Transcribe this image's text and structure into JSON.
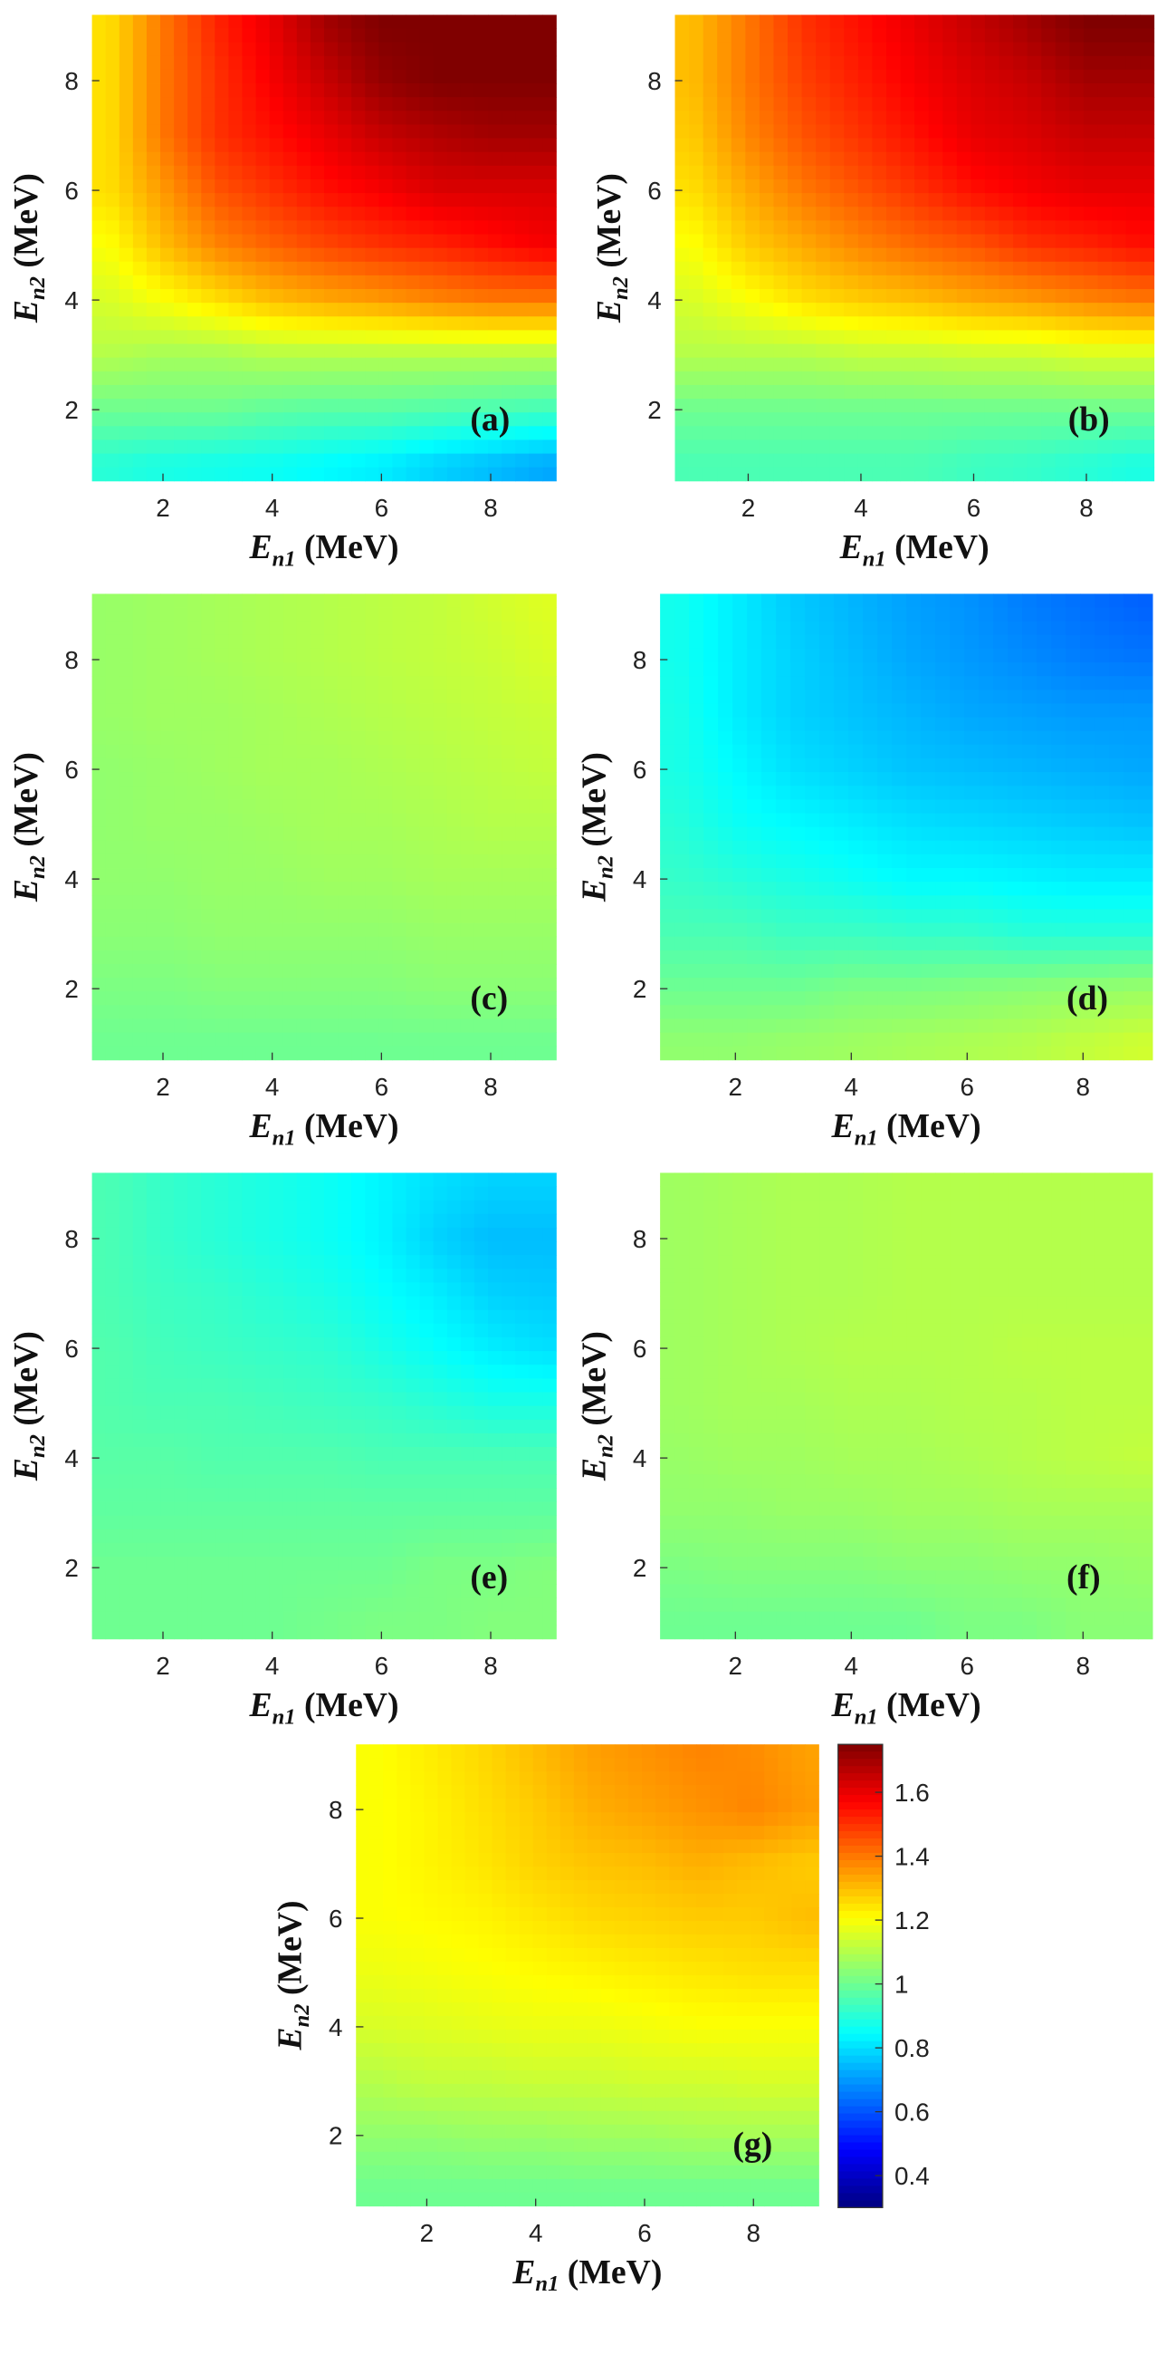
{
  "chart_data": [
    {
      "type": "heatmap",
      "panel": "(a)",
      "xlabel": {
        "main": "E",
        "sub": "n1",
        "unit": " (MeV)"
      },
      "ylabel": {
        "main": "E",
        "sub": "n2",
        "unit": " (MeV)"
      },
      "xticks": [
        "2",
        "4",
        "6",
        "8"
      ],
      "yticks": [
        "2",
        "4",
        "6",
        "8"
      ],
      "xlim": [
        0.7,
        9.2
      ],
      "ylim": [
        0.7,
        9.2
      ],
      "x": [
        1,
        2,
        3,
        4,
        5,
        6,
        7,
        8,
        9
      ],
      "y": [
        1,
        2,
        3,
        4,
        5,
        6,
        7,
        8,
        9
      ],
      "z": [
        [
          0.9,
          0.88,
          0.87,
          0.86,
          0.84,
          0.82,
          0.78,
          0.75,
          0.72
        ],
        [
          1.0,
          1.0,
          1.0,
          0.98,
          0.97,
          0.97,
          0.96,
          0.95,
          0.94
        ],
        [
          1.1,
          1.08,
          1.08,
          1.1,
          1.1,
          1.1,
          1.1,
          1.1,
          1.1
        ],
        [
          1.15,
          1.2,
          1.25,
          1.3,
          1.33,
          1.35,
          1.38,
          1.4,
          1.4
        ],
        [
          1.2,
          1.3,
          1.38,
          1.43,
          1.47,
          1.5,
          1.52,
          1.55,
          1.58
        ],
        [
          1.25,
          1.35,
          1.45,
          1.5,
          1.55,
          1.58,
          1.62,
          1.62,
          1.62
        ],
        [
          1.25,
          1.4,
          1.5,
          1.55,
          1.6,
          1.65,
          1.68,
          1.7,
          1.7
        ],
        [
          1.25,
          1.4,
          1.5,
          1.58,
          1.65,
          1.72,
          1.75,
          1.75,
          1.75
        ],
        [
          1.25,
          1.4,
          1.52,
          1.6,
          1.7,
          1.75,
          1.75,
          1.75,
          1.75
        ]
      ]
    },
    {
      "type": "heatmap",
      "panel": "(b)",
      "xlabel": {
        "main": "E",
        "sub": "n1",
        "unit": " (MeV)"
      },
      "ylabel": {
        "main": "E",
        "sub": "n2",
        "unit": " (MeV)"
      },
      "xticks": [
        "2",
        "4",
        "6",
        "8"
      ],
      "yticks": [
        "2",
        "4",
        "6",
        "8"
      ],
      "xlim": [
        0.7,
        9.2
      ],
      "ylim": [
        0.7,
        9.2
      ],
      "x": [
        1,
        2,
        3,
        4,
        5,
        6,
        7,
        8,
        9
      ],
      "y": [
        1,
        2,
        3,
        4,
        5,
        6,
        7,
        8,
        9
      ],
      "z": [
        [
          0.95,
          0.95,
          0.95,
          0.95,
          0.95,
          0.93,
          0.92,
          0.9,
          0.88
        ],
        [
          1.0,
          1.0,
          1.0,
          1.0,
          1.0,
          1.0,
          1.0,
          1.0,
          1.0
        ],
        [
          1.1,
          1.1,
          1.1,
          1.12,
          1.12,
          1.13,
          1.13,
          1.15,
          1.15
        ],
        [
          1.15,
          1.2,
          1.25,
          1.28,
          1.3,
          1.33,
          1.35,
          1.38,
          1.4
        ],
        [
          1.2,
          1.28,
          1.33,
          1.38,
          1.42,
          1.45,
          1.5,
          1.52,
          1.55
        ],
        [
          1.25,
          1.33,
          1.4,
          1.45,
          1.5,
          1.55,
          1.58,
          1.6,
          1.6
        ],
        [
          1.28,
          1.38,
          1.45,
          1.5,
          1.55,
          1.6,
          1.62,
          1.65,
          1.65
        ],
        [
          1.3,
          1.4,
          1.48,
          1.53,
          1.58,
          1.62,
          1.65,
          1.7,
          1.7
        ],
        [
          1.3,
          1.4,
          1.5,
          1.55,
          1.6,
          1.65,
          1.7,
          1.75,
          1.75
        ]
      ]
    },
    {
      "type": "heatmap",
      "panel": "(c)",
      "xlabel": {
        "main": "E",
        "sub": "n1",
        "unit": " (MeV)"
      },
      "ylabel": {
        "main": "E",
        "sub": "n2",
        "unit": " (MeV)"
      },
      "xticks": [
        "2",
        "4",
        "6",
        "8"
      ],
      "yticks": [
        "2",
        "4",
        "6",
        "8"
      ],
      "xlim": [
        0.7,
        9.2
      ],
      "ylim": [
        0.7,
        9.2
      ],
      "x": [
        1,
        2,
        3,
        4,
        5,
        6,
        7,
        8,
        9
      ],
      "y": [
        1,
        2,
        3,
        4,
        5,
        6,
        7,
        8,
        9
      ],
      "z": [
        [
          1.0,
          1.0,
          1.0,
          1.0,
          1.0,
          1.0,
          1.0,
          1.0,
          1.0
        ],
        [
          1.02,
          1.02,
          1.03,
          1.03,
          1.03,
          1.03,
          1.04,
          1.04,
          1.04
        ],
        [
          1.04,
          1.04,
          1.05,
          1.05,
          1.05,
          1.05,
          1.06,
          1.06,
          1.06
        ],
        [
          1.05,
          1.05,
          1.06,
          1.06,
          1.07,
          1.07,
          1.08,
          1.08,
          1.08
        ],
        [
          1.05,
          1.06,
          1.06,
          1.07,
          1.08,
          1.08,
          1.09,
          1.1,
          1.1
        ],
        [
          1.05,
          1.06,
          1.07,
          1.08,
          1.08,
          1.09,
          1.1,
          1.11,
          1.12
        ],
        [
          1.06,
          1.07,
          1.07,
          1.08,
          1.09,
          1.1,
          1.11,
          1.12,
          1.13
        ],
        [
          1.06,
          1.07,
          1.08,
          1.09,
          1.1,
          1.11,
          1.12,
          1.13,
          1.15
        ],
        [
          1.06,
          1.07,
          1.08,
          1.09,
          1.1,
          1.11,
          1.12,
          1.14,
          1.16
        ]
      ]
    },
    {
      "type": "heatmap",
      "panel": "(d)",
      "xlabel": {
        "main": "E",
        "sub": "n1",
        "unit": " (MeV)"
      },
      "ylabel": {
        "main": "E",
        "sub": "n2",
        "unit": " (MeV)"
      },
      "xticks": [
        "2",
        "4",
        "6",
        "8"
      ],
      "yticks": [
        "2",
        "4",
        "6",
        "8"
      ],
      "xlim": [
        0.7,
        9.2
      ],
      "ylim": [
        0.7,
        9.2
      ],
      "x": [
        1,
        2,
        3,
        4,
        5,
        6,
        7,
        8,
        9
      ],
      "y": [
        1,
        2,
        3,
        4,
        5,
        6,
        7,
        8,
        9
      ],
      "z": [
        [
          1.05,
          1.05,
          1.06,
          1.07,
          1.08,
          1.09,
          1.1,
          1.12,
          1.14
        ],
        [
          1.0,
          1.0,
          1.0,
          1.02,
          1.02,
          1.03,
          1.04,
          1.05,
          1.06
        ],
        [
          0.95,
          0.95,
          0.93,
          0.93,
          0.92,
          0.92,
          0.9,
          0.9,
          0.9
        ],
        [
          0.92,
          0.9,
          0.88,
          0.86,
          0.84,
          0.84,
          0.83,
          0.82,
          0.82
        ],
        [
          0.9,
          0.86,
          0.84,
          0.82,
          0.8,
          0.79,
          0.78,
          0.77,
          0.76
        ],
        [
          0.88,
          0.84,
          0.8,
          0.78,
          0.76,
          0.75,
          0.74,
          0.73,
          0.72
        ],
        [
          0.88,
          0.82,
          0.78,
          0.76,
          0.74,
          0.72,
          0.71,
          0.7,
          0.7
        ],
        [
          0.87,
          0.82,
          0.78,
          0.75,
          0.72,
          0.7,
          0.68,
          0.66,
          0.65
        ],
        [
          0.87,
          0.82,
          0.77,
          0.74,
          0.71,
          0.69,
          0.66,
          0.64,
          0.62
        ]
      ]
    },
    {
      "type": "heatmap",
      "panel": "(e)",
      "xlabel": {
        "main": "E",
        "sub": "n1",
        "unit": " (MeV)"
      },
      "ylabel": {
        "main": "E",
        "sub": "n2",
        "unit": " (MeV)"
      },
      "xticks": [
        "2",
        "4",
        "6",
        "8"
      ],
      "yticks": [
        "2",
        "4",
        "6",
        "8"
      ],
      "xlim": [
        0.7,
        9.2
      ],
      "ylim": [
        0.7,
        9.2
      ],
      "x": [
        1,
        2,
        3,
        4,
        5,
        6,
        7,
        8,
        9
      ],
      "y": [
        1,
        2,
        3,
        4,
        5,
        6,
        7,
        8,
        9
      ],
      "z": [
        [
          1.0,
          1.0,
          1.0,
          1.0,
          1.01,
          1.02,
          1.02,
          1.03,
          1.03
        ],
        [
          1.0,
          1.0,
          1.0,
          1.0,
          1.0,
          1.0,
          1.02,
          1.02,
          1.03
        ],
        [
          0.98,
          0.98,
          0.98,
          0.98,
          0.98,
          0.98,
          0.98,
          0.98,
          0.98
        ],
        [
          0.97,
          0.97,
          0.96,
          0.96,
          0.96,
          0.95,
          0.95,
          0.95,
          0.95
        ],
        [
          0.96,
          0.95,
          0.95,
          0.94,
          0.93,
          0.92,
          0.9,
          0.88,
          0.88
        ],
        [
          0.96,
          0.94,
          0.93,
          0.92,
          0.91,
          0.88,
          0.85,
          0.82,
          0.8
        ],
        [
          0.95,
          0.93,
          0.92,
          0.9,
          0.88,
          0.85,
          0.82,
          0.78,
          0.77
        ],
        [
          0.95,
          0.92,
          0.9,
          0.88,
          0.86,
          0.83,
          0.78,
          0.75,
          0.75
        ],
        [
          0.95,
          0.92,
          0.9,
          0.88,
          0.86,
          0.83,
          0.8,
          0.78,
          0.78
        ]
      ]
    },
    {
      "type": "heatmap",
      "panel": "(f)",
      "xlabel": {
        "main": "E",
        "sub": "n1",
        "unit": " (MeV)"
      },
      "ylabel": {
        "main": "E",
        "sub": "n2",
        "unit": " (MeV)"
      },
      "xticks": [
        "2",
        "4",
        "6",
        "8"
      ],
      "yticks": [
        "2",
        "4",
        "6",
        "8"
      ],
      "xlim": [
        0.7,
        9.2
      ],
      "ylim": [
        0.7,
        9.2
      ],
      "x": [
        1,
        2,
        3,
        4,
        5,
        6,
        7,
        8,
        9
      ],
      "y": [
        1,
        2,
        3,
        4,
        5,
        6,
        7,
        8,
        9
      ],
      "z": [
        [
          1.0,
          1.0,
          1.0,
          1.0,
          1.0,
          1.02,
          1.02,
          1.04,
          1.04
        ],
        [
          1.02,
          1.03,
          1.03,
          1.03,
          1.04,
          1.04,
          1.05,
          1.05,
          1.06
        ],
        [
          1.05,
          1.05,
          1.06,
          1.06,
          1.07,
          1.07,
          1.08,
          1.08,
          1.08
        ],
        [
          1.06,
          1.07,
          1.07,
          1.08,
          1.08,
          1.09,
          1.1,
          1.11,
          1.12
        ],
        [
          1.07,
          1.08,
          1.08,
          1.09,
          1.09,
          1.1,
          1.1,
          1.11,
          1.11
        ],
        [
          1.07,
          1.08,
          1.09,
          1.1,
          1.1,
          1.1,
          1.11,
          1.11,
          1.11
        ],
        [
          1.07,
          1.08,
          1.09,
          1.09,
          1.1,
          1.1,
          1.1,
          1.1,
          1.1
        ],
        [
          1.07,
          1.08,
          1.09,
          1.09,
          1.1,
          1.1,
          1.1,
          1.1,
          1.1
        ],
        [
          1.07,
          1.08,
          1.09,
          1.09,
          1.1,
          1.1,
          1.1,
          1.1,
          1.1
        ]
      ]
    },
    {
      "type": "heatmap",
      "panel": "(g)",
      "xlabel": {
        "main": "E",
        "sub": "n1",
        "unit": " (MeV)"
      },
      "ylabel": {
        "main": "E",
        "sub": "n2",
        "unit": " (MeV)"
      },
      "xticks": [
        "2",
        "4",
        "6",
        "8"
      ],
      "yticks": [
        "2",
        "4",
        "6",
        "8"
      ],
      "xlim": [
        0.7,
        9.2
      ],
      "ylim": [
        0.7,
        9.2
      ],
      "x": [
        1,
        2,
        3,
        4,
        5,
        6,
        7,
        8,
        9
      ],
      "y": [
        1,
        2,
        3,
        4,
        5,
        6,
        7,
        8,
        9
      ],
      "z": [
        [
          1.0,
          1.0,
          1.0,
          1.0,
          1.0,
          1.0,
          1.0,
          1.0,
          1.0
        ],
        [
          1.05,
          1.05,
          1.06,
          1.06,
          1.07,
          1.07,
          1.08,
          1.08,
          1.08
        ],
        [
          1.1,
          1.12,
          1.12,
          1.13,
          1.13,
          1.14,
          1.14,
          1.15,
          1.15
        ],
        [
          1.15,
          1.16,
          1.17,
          1.18,
          1.18,
          1.19,
          1.2,
          1.2,
          1.2
        ],
        [
          1.18,
          1.19,
          1.2,
          1.21,
          1.22,
          1.23,
          1.24,
          1.25,
          1.25
        ],
        [
          1.2,
          1.21,
          1.22,
          1.24,
          1.26,
          1.27,
          1.28,
          1.28,
          1.3
        ],
        [
          1.2,
          1.22,
          1.24,
          1.27,
          1.29,
          1.3,
          1.32,
          1.3,
          1.28
        ],
        [
          1.2,
          1.22,
          1.25,
          1.28,
          1.32,
          1.34,
          1.36,
          1.38,
          1.35
        ],
        [
          1.2,
          1.23,
          1.26,
          1.3,
          1.34,
          1.36,
          1.38,
          1.37,
          1.34
        ]
      ]
    }
  ],
  "colorbar": {
    "min": 0.3,
    "max": 1.75,
    "colormap": "jet",
    "ticks": [
      "0.4",
      "0.6",
      "0.8",
      "1",
      "1.2",
      "1.4",
      "1.6"
    ],
    "tick_values": [
      0.4,
      0.6,
      0.8,
      1.0,
      1.2,
      1.4,
      1.6
    ]
  }
}
